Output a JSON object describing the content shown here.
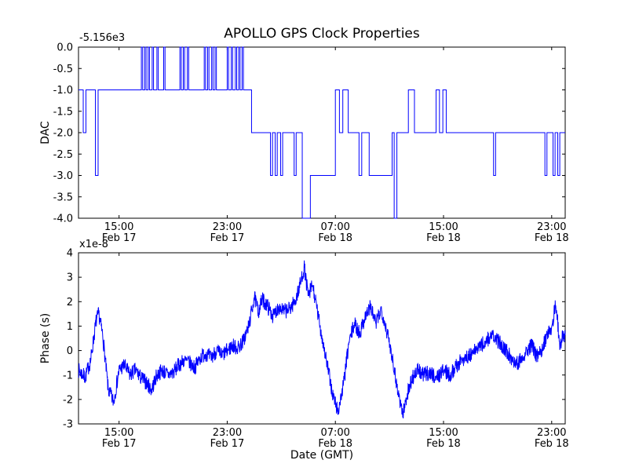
{
  "chart_data": [
    {
      "type": "line",
      "name": "dac",
      "title": "APOLLO GPS Clock Properties",
      "ylabel": "DAC",
      "y_offset_label": "-5.156e3",
      "xlabel": "",
      "line_color": "#0000ff",
      "grid": false,
      "legend": "none",
      "ylim": [
        -4.0,
        0.0
      ],
      "xlim_hours": [
        0,
        36
      ],
      "yticks": [
        {
          "v": 0.0,
          "label": "0.0"
        },
        {
          "v": -0.5,
          "label": "-0.5"
        },
        {
          "v": -1.0,
          "label": "-1.0"
        },
        {
          "v": -1.5,
          "label": "-1.5"
        },
        {
          "v": -2.0,
          "label": "-2.0"
        },
        {
          "v": -2.5,
          "label": "-2.5"
        },
        {
          "v": -3.0,
          "label": "-3.0"
        },
        {
          "v": -3.5,
          "label": "-3.5"
        },
        {
          "v": -4.0,
          "label": "-4.0"
        }
      ],
      "xticks": [
        {
          "t": 3,
          "time": "15:00",
          "date": "Feb 17"
        },
        {
          "t": 11,
          "time": "23:00",
          "date": "Feb 17"
        },
        {
          "t": 19,
          "time": "07:00",
          "date": "Feb 18"
        },
        {
          "t": 27,
          "time": "15:00",
          "date": "Feb 18"
        },
        {
          "t": 35,
          "time": "23:00",
          "date": "Feb 18"
        }
      ],
      "step_points": [
        [
          0,
          -1
        ],
        [
          0.35,
          -2
        ],
        [
          0.55,
          -1
        ],
        [
          1.25,
          -3
        ],
        [
          1.45,
          -1
        ],
        [
          4.65,
          0
        ],
        [
          4.75,
          -1
        ],
        [
          4.9,
          0
        ],
        [
          5.0,
          -1
        ],
        [
          5.15,
          0
        ],
        [
          5.25,
          -1
        ],
        [
          5.45,
          0
        ],
        [
          5.55,
          -1
        ],
        [
          5.8,
          0
        ],
        [
          5.9,
          -1
        ],
        [
          6.3,
          0
        ],
        [
          6.4,
          -1
        ],
        [
          7.5,
          0
        ],
        [
          7.6,
          -1
        ],
        [
          7.75,
          0
        ],
        [
          7.85,
          -1
        ],
        [
          8.05,
          0
        ],
        [
          8.15,
          -1
        ],
        [
          9.3,
          0
        ],
        [
          9.4,
          -1
        ],
        [
          9.55,
          0
        ],
        [
          9.65,
          -1
        ],
        [
          9.85,
          0
        ],
        [
          9.95,
          -1
        ],
        [
          10.1,
          0
        ],
        [
          10.2,
          -1
        ],
        [
          11.0,
          0
        ],
        [
          11.1,
          -1
        ],
        [
          11.3,
          0
        ],
        [
          11.4,
          -1
        ],
        [
          11.6,
          0
        ],
        [
          11.7,
          -1
        ],
        [
          11.85,
          0
        ],
        [
          11.95,
          -1
        ],
        [
          12.1,
          0
        ],
        [
          12.2,
          -1
        ],
        [
          12.8,
          -2
        ],
        [
          14.2,
          -3
        ],
        [
          14.35,
          -2
        ],
        [
          14.55,
          -3
        ],
        [
          14.7,
          -2
        ],
        [
          14.95,
          -3
        ],
        [
          15.1,
          -2
        ],
        [
          15.95,
          -3
        ],
        [
          16.1,
          -2
        ],
        [
          16.55,
          -4
        ],
        [
          17.15,
          -3
        ],
        [
          19.0,
          -1
        ],
        [
          19.3,
          -2
        ],
        [
          19.55,
          -1
        ],
        [
          19.95,
          -2
        ],
        [
          20.75,
          -3
        ],
        [
          20.95,
          -2
        ],
        [
          21.5,
          -3
        ],
        [
          23.2,
          -2
        ],
        [
          23.35,
          -4
        ],
        [
          23.55,
          -2
        ],
        [
          24.4,
          -1
        ],
        [
          24.85,
          -2
        ],
        [
          26.45,
          -1
        ],
        [
          26.7,
          -2
        ],
        [
          26.95,
          -1
        ],
        [
          27.2,
          -2
        ],
        [
          30.7,
          -3
        ],
        [
          30.85,
          -2
        ],
        [
          34.5,
          -3
        ],
        [
          34.65,
          -2
        ],
        [
          35.1,
          -3
        ],
        [
          35.25,
          -2
        ],
        [
          35.45,
          -3
        ],
        [
          35.6,
          -2
        ],
        [
          36,
          -2
        ]
      ]
    },
    {
      "type": "line",
      "name": "phase",
      "title": "",
      "ylabel": "Phase (s)",
      "y_offset_label": "x1e-8",
      "xlabel": "Date (GMT)",
      "line_color": "#0000ff",
      "grid": false,
      "legend": "none",
      "ylim": [
        -3,
        4
      ],
      "xlim_hours": [
        0,
        36
      ],
      "yticks": [
        {
          "v": 4,
          "label": "4"
        },
        {
          "v": 3,
          "label": "3"
        },
        {
          "v": 2,
          "label": "2"
        },
        {
          "v": 1,
          "label": "1"
        },
        {
          "v": 0,
          "label": "0"
        },
        {
          "v": -1,
          "label": "-1"
        },
        {
          "v": -2,
          "label": "-2"
        },
        {
          "v": -3,
          "label": "-3"
        }
      ],
      "xticks": [
        {
          "t": 3,
          "time": "15:00",
          "date": "Feb 17"
        },
        {
          "t": 11,
          "time": "23:00",
          "date": "Feb 17"
        },
        {
          "t": 19,
          "time": "07:00",
          "date": "Feb 18"
        },
        {
          "t": 27,
          "time": "15:00",
          "date": "Feb 18"
        },
        {
          "t": 35,
          "time": "23:00",
          "date": "Feb 18"
        }
      ],
      "anchors": [
        [
          0,
          -0.8
        ],
        [
          0.5,
          -1.1
        ],
        [
          0.9,
          -0.4
        ],
        [
          1.3,
          1.2
        ],
        [
          1.5,
          1.5
        ],
        [
          1.8,
          0.6
        ],
        [
          2.2,
          -1.6
        ],
        [
          2.6,
          -2.1
        ],
        [
          3.0,
          -0.8
        ],
        [
          3.4,
          -0.6
        ],
        [
          3.8,
          -1.0
        ],
        [
          4.2,
          -0.8
        ],
        [
          4.6,
          -1.1
        ],
        [
          5.0,
          -1.3
        ],
        [
          5.4,
          -1.6
        ],
        [
          5.8,
          -1.0
        ],
        [
          6.2,
          -0.8
        ],
        [
          6.6,
          -1.0
        ],
        [
          7.0,
          -0.9
        ],
        [
          7.4,
          -0.6
        ],
        [
          7.8,
          -0.4
        ],
        [
          8.2,
          -0.5
        ],
        [
          8.6,
          -0.7
        ],
        [
          9.0,
          -0.3
        ],
        [
          9.4,
          -0.1
        ],
        [
          9.8,
          -0.3
        ],
        [
          10.2,
          0.0
        ],
        [
          10.6,
          -0.2
        ],
        [
          11.0,
          0.0
        ],
        [
          11.4,
          0.2
        ],
        [
          11.8,
          0.1
        ],
        [
          12.2,
          0.4
        ],
        [
          12.6,
          1.0
        ],
        [
          13.0,
          2.2
        ],
        [
          13.3,
          1.6
        ],
        [
          13.6,
          2.1
        ],
        [
          14.0,
          1.8
        ],
        [
          14.4,
          1.4
        ],
        [
          14.8,
          1.8
        ],
        [
          15.2,
          1.6
        ],
        [
          15.6,
          1.7
        ],
        [
          16.0,
          2.0
        ],
        [
          16.3,
          2.5
        ],
        [
          16.7,
          3.4
        ],
        [
          17.0,
          2.2
        ],
        [
          17.3,
          2.7
        ],
        [
          17.6,
          1.8
        ],
        [
          18.0,
          0.6
        ],
        [
          18.4,
          -0.6
        ],
        [
          18.8,
          -1.8
        ],
        [
          19.2,
          -2.5
        ],
        [
          19.6,
          -1.4
        ],
        [
          20.0,
          0.3
        ],
        [
          20.4,
          1.1
        ],
        [
          20.8,
          0.7
        ],
        [
          21.2,
          1.4
        ],
        [
          21.6,
          1.8
        ],
        [
          22.0,
          1.1
        ],
        [
          22.4,
          1.7
        ],
        [
          22.8,
          0.8
        ],
        [
          23.2,
          -0.2
        ],
        [
          23.6,
          -1.6
        ],
        [
          24.0,
          -2.6
        ],
        [
          24.3,
          -1.8
        ],
        [
          24.7,
          -1.1
        ],
        [
          25.1,
          -0.8
        ],
        [
          25.5,
          -1.0
        ],
        [
          26.0,
          -0.9
        ],
        [
          26.5,
          -1.1
        ],
        [
          27.0,
          -0.8
        ],
        [
          27.5,
          -1.0
        ],
        [
          28.0,
          -0.6
        ],
        [
          28.5,
          -0.3
        ],
        [
          29.0,
          -0.2
        ],
        [
          29.5,
          0.1
        ],
        [
          30.0,
          0.3
        ],
        [
          30.5,
          0.6
        ],
        [
          31.0,
          0.4
        ],
        [
          31.5,
          0.1
        ],
        [
          32.0,
          -0.3
        ],
        [
          32.5,
          -0.5
        ],
        [
          33.0,
          -0.1
        ],
        [
          33.5,
          0.2
        ],
        [
          34.0,
          -0.3
        ],
        [
          34.5,
          0.4
        ],
        [
          35.0,
          1.0
        ],
        [
          35.3,
          1.9
        ],
        [
          35.6,
          0.3
        ],
        [
          36,
          0.7
        ]
      ],
      "noise_amplitude": 0.32,
      "noise_seed": 7,
      "sample_step": 0.02
    }
  ]
}
